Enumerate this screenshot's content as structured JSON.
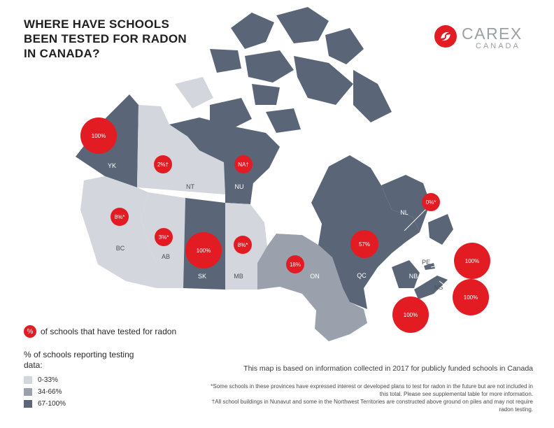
{
  "title": [
    "WHERE HAVE SCHOOLS",
    "BEEN TESTED FOR RADON",
    "IN CANADA?"
  ],
  "logo": {
    "name": "CAREX",
    "sub": "CANADA"
  },
  "colors": {
    "low": "#d3d6dc",
    "mid": "#9aa1ad",
    "high": "#5a6677",
    "accent": "#e31b23"
  },
  "provinces": [
    {
      "code": "YK",
      "category": "67-100%",
      "percent": "100%"
    },
    {
      "code": "NT",
      "category": "0-33%",
      "percent": "2%†"
    },
    {
      "code": "NU",
      "category": "67-100%",
      "percent": "NA†"
    },
    {
      "code": "BC",
      "category": "0-33%",
      "percent": "8%*"
    },
    {
      "code": "AB",
      "category": "0-33%",
      "percent": "3%*"
    },
    {
      "code": "SK",
      "category": "67-100%",
      "percent": "100%"
    },
    {
      "code": "MB",
      "category": "0-33%",
      "percent": "8%*"
    },
    {
      "code": "ON",
      "category": "34-66%",
      "percent": "18%"
    },
    {
      "code": "QC",
      "category": "67-100%",
      "percent": "57%"
    },
    {
      "code": "NL",
      "category": "67-100%",
      "percent": "0%*"
    },
    {
      "code": "NB",
      "category": "67-100%",
      "percent": "100%"
    },
    {
      "code": "PE",
      "category": "67-100%",
      "percent": "100%"
    },
    {
      "code": "NS",
      "category": "67-100%",
      "percent": "100%"
    }
  ],
  "legend": {
    "key_symbol": "%",
    "key_text": "of schools that have tested for radon",
    "title": "% of schools reporting testing data:",
    "items": [
      {
        "label": "0-33%",
        "color": "#d3d6dc"
      },
      {
        "label": "34-66%",
        "color": "#9aa1ad"
      },
      {
        "label": "67-100%",
        "color": "#5a6677"
      }
    ]
  },
  "note": "This map is based on information collected in 2017 for publicly funded schools in Canada",
  "footnotes": [
    "*Some schools in these provinces have expressed interest or developed plans to test for radon in the future but are not included in this total. Please see supplemental table for more information.",
    "†All school buildings in Nunavut and some in the Northwest Territories are constructed above ground on piles and may not require radon testing."
  ]
}
